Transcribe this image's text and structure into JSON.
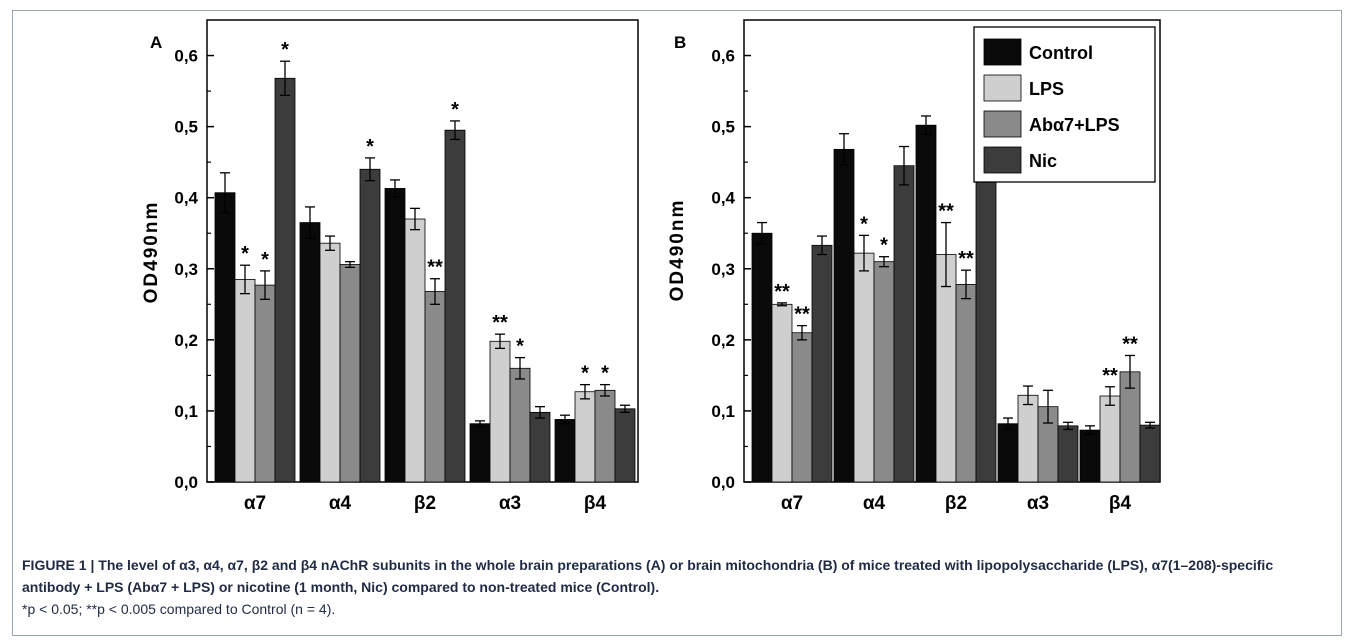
{
  "caption": {
    "title": "FIGURE 1 | The level of α3, α4, α7, β2 and β4 nAChR subunits in the whole brain preparations (A) or brain mitochondria (B) of mice treated with lipopolysaccharide (LPS), α7(1–208)-specific antibody + LPS (Abα7 + LPS) or nicotine (1 month, Nic) compared to non-treated mice (Control).",
    "note": "*p < 0.05; **p < 0.005 compared to Control (n = 4)."
  },
  "colors": {
    "Control": "#0a0a0a",
    "LPS": "#cfcfcf",
    "Abα7+LPS": "#8a8a8a",
    "Nic": "#3c3c3c"
  },
  "chart_data": [
    {
      "type": "bar",
      "panel": "A",
      "ylabel": "OD490nm",
      "xlabel": "",
      "ylim": [
        0,
        0.65
      ],
      "yticks": [
        "0,0",
        "0,1",
        "0,2",
        "0,3",
        "0,4",
        "0,5",
        "0,6"
      ],
      "categories": [
        "α7",
        "α4",
        "β2",
        "α3",
        "β4"
      ],
      "series": [
        {
          "name": "Control",
          "values": [
            0.407,
            0.365,
            0.413,
            0.082,
            0.088
          ],
          "errors": [
            0.028,
            0.022,
            0.012,
            0.004,
            0.006
          ],
          "sig": [
            "",
            "",
            "",
            "",
            ""
          ]
        },
        {
          "name": "LPS",
          "values": [
            0.285,
            0.336,
            0.37,
            0.198,
            0.127
          ],
          "errors": [
            0.02,
            0.01,
            0.015,
            0.01,
            0.01
          ],
          "sig": [
            "*",
            "",
            "",
            "**",
            "*"
          ]
        },
        {
          "name": "Abα7+LPS",
          "values": [
            0.277,
            0.306,
            0.268,
            0.16,
            0.129
          ],
          "errors": [
            0.02,
            0.004,
            0.018,
            0.015,
            0.008
          ],
          "sig": [
            "*",
            "",
            "**",
            "*",
            "*"
          ]
        },
        {
          "name": "Nic",
          "values": [
            0.568,
            0.44,
            0.495,
            0.098,
            0.103
          ],
          "errors": [
            0.024,
            0.016,
            0.013,
            0.008,
            0.005
          ],
          "sig": [
            "*",
            "*",
            "*",
            "",
            ""
          ]
        }
      ]
    },
    {
      "type": "bar",
      "panel": "B",
      "ylabel": "OD490nm",
      "xlabel": "",
      "ylim": [
        0,
        0.65
      ],
      "yticks": [
        "0,0",
        "0,1",
        "0,2",
        "0,3",
        "0,4",
        "0,5",
        "0,6"
      ],
      "legend": "top-right",
      "categories": [
        "α7",
        "α4",
        "β2",
        "α3",
        "β4"
      ],
      "series": [
        {
          "name": "Control",
          "values": [
            0.35,
            0.468,
            0.502,
            0.082,
            0.073
          ],
          "errors": [
            0.015,
            0.022,
            0.013,
            0.008,
            0.006
          ],
          "sig": [
            "",
            "",
            "",
            "",
            ""
          ]
        },
        {
          "name": "LPS",
          "values": [
            0.25,
            0.322,
            0.32,
            0.122,
            0.121
          ],
          "errors": [
            0.002,
            0.025,
            0.045,
            0.013,
            0.013
          ],
          "sig": [
            "**",
            "*",
            "**",
            "",
            "**"
          ]
        },
        {
          "name": "Abα7+LPS",
          "values": [
            0.21,
            0.31,
            0.278,
            0.106,
            0.155
          ],
          "errors": [
            0.01,
            0.007,
            0.02,
            0.023,
            0.023
          ],
          "sig": [
            "**",
            "*",
            "**",
            "",
            "**"
          ]
        },
        {
          "name": "Nic",
          "values": [
            0.333,
            0.445,
            0.551,
            0.079,
            0.08
          ],
          "errors": [
            0.013,
            0.027,
            0.02,
            0.005,
            0.004
          ],
          "sig": [
            "",
            "",
            "",
            "",
            ""
          ]
        }
      ]
    }
  ]
}
